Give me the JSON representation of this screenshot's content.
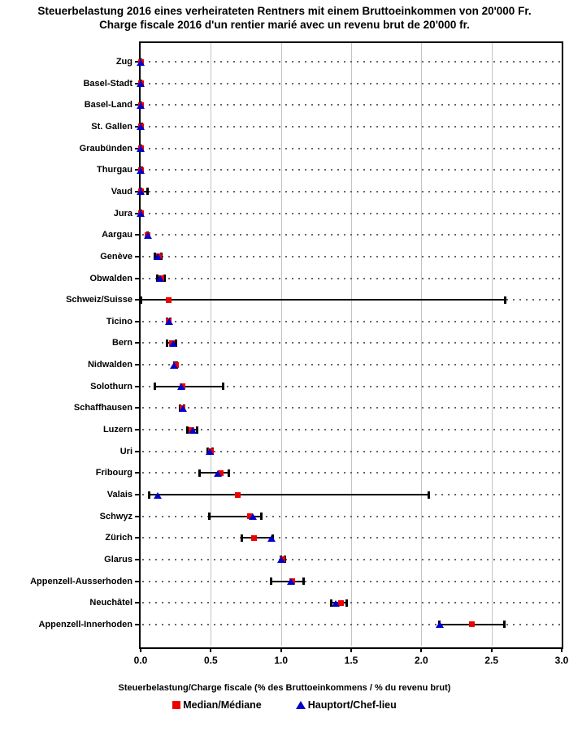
{
  "page": {
    "title_line1": "Steuerbelastung 2016 eines verheirateten Rentners mit einem Bruttoeinkommen von 20'000 Fr.",
    "title_line2": "Charge fiscale 2016 d'un rentier marié avec un revenu brut de 20'000 fr."
  },
  "colors": {
    "median": "#ee0000",
    "capital": "#0000cc",
    "bar": "#000000",
    "grid": "#c4c4c4",
    "dots": "#666666"
  },
  "chart_data": {
    "type": "scatter",
    "orientation": "horizontal",
    "title": "Steuerbelastung 2016 eines verheirateten Rentners mit einem Bruttoeinkommen von 20'000 Fr. / Charge fiscale 2016 d'un rentier marié avec un revenu brut de 20'000 fr.",
    "xlabel": "Steuerbelastung/Charge fiscale (% des Bruttoeinkommens / % du revenu brut)",
    "xlim": [
      0.0,
      3.0
    ],
    "xticks": [
      "0.0",
      "0.5",
      "1.0",
      "1.5",
      "2.0",
      "2.5",
      "3.0"
    ],
    "grid": {
      "vertical": "solid",
      "horizontal": "dotted"
    },
    "legend": [
      {
        "label": "Median/Médiane",
        "marker": "square",
        "color": "#ee0000"
      },
      {
        "label": "Hauptort/Chef-lieu",
        "marker": "triangle",
        "color": "#0000cc"
      }
    ],
    "bars_meaning": "min-max range",
    "rows": [
      {
        "canton": "Zug",
        "median": 0.0,
        "hauptort": 0.0,
        "min": 0.0,
        "max": 0.0
      },
      {
        "canton": "Basel-Stadt",
        "median": 0.0,
        "hauptort": 0.0,
        "min": 0.0,
        "max": 0.0
      },
      {
        "canton": "Basel-Land",
        "median": 0.0,
        "hauptort": 0.0,
        "min": 0.0,
        "max": 0.0
      },
      {
        "canton": "St. Gallen",
        "median": 0.0,
        "hauptort": 0.0,
        "min": 0.0,
        "max": 0.01
      },
      {
        "canton": "Graubünden",
        "median": 0.0,
        "hauptort": 0.0,
        "min": 0.0,
        "max": 0.0
      },
      {
        "canton": "Thurgau",
        "median": 0.0,
        "hauptort": 0.0,
        "min": 0.0,
        "max": 0.01
      },
      {
        "canton": "Vaud",
        "median": 0.0,
        "hauptort": 0.0,
        "min": 0.0,
        "max": 0.05
      },
      {
        "canton": "Jura",
        "median": 0.0,
        "hauptort": 0.0,
        "min": 0.0,
        "max": 0.0
      },
      {
        "canton": "Aargau",
        "median": 0.05,
        "hauptort": 0.05,
        "min": 0.05,
        "max": 0.05
      },
      {
        "canton": "Genève",
        "median": 0.13,
        "hauptort": 0.12,
        "min": 0.1,
        "max": 0.15
      },
      {
        "canton": "Obwalden",
        "median": 0.15,
        "hauptort": 0.14,
        "min": 0.12,
        "max": 0.17
      },
      {
        "canton": "Schweiz/Suisse",
        "median": 0.2,
        "hauptort": null,
        "min": 0.0,
        "max": 2.6
      },
      {
        "canton": "Ticino",
        "median": 0.2,
        "hauptort": 0.2,
        "min": 0.19,
        "max": 0.21
      },
      {
        "canton": "Bern",
        "median": 0.22,
        "hauptort": 0.23,
        "min": 0.19,
        "max": 0.25
      },
      {
        "canton": "Nidwalden",
        "median": 0.25,
        "hauptort": 0.24,
        "min": 0.24,
        "max": 0.26
      },
      {
        "canton": "Solothurn",
        "median": 0.3,
        "hauptort": 0.29,
        "min": 0.1,
        "max": 0.59
      },
      {
        "canton": "Schaffhausen",
        "median": 0.3,
        "hauptort": 0.3,
        "min": 0.28,
        "max": 0.31
      },
      {
        "canton": "Luzern",
        "median": 0.36,
        "hauptort": 0.37,
        "min": 0.33,
        "max": 0.4
      },
      {
        "canton": "Uri",
        "median": 0.5,
        "hauptort": 0.49,
        "min": 0.48,
        "max": 0.51
      },
      {
        "canton": "Fribourg",
        "median": 0.57,
        "hauptort": 0.55,
        "min": 0.42,
        "max": 0.63
      },
      {
        "canton": "Valais",
        "median": 0.69,
        "hauptort": 0.12,
        "min": 0.06,
        "max": 2.05
      },
      {
        "canton": "Schwyz",
        "median": 0.78,
        "hauptort": 0.8,
        "min": 0.49,
        "max": 0.86
      },
      {
        "canton": "Zürich",
        "median": 0.81,
        "hauptort": 0.93,
        "min": 0.72,
        "max": 0.94
      },
      {
        "canton": "Glarus",
        "median": 1.01,
        "hauptort": 1.0,
        "min": 1.0,
        "max": 1.03
      },
      {
        "canton": "Appenzell-Ausserhoden",
        "median": 1.08,
        "hauptort": 1.07,
        "min": 0.93,
        "max": 1.16
      },
      {
        "canton": "Neuchâtel",
        "median": 1.43,
        "hauptort": 1.39,
        "min": 1.36,
        "max": 1.47
      },
      {
        "canton": "Appenzell-Innerhoden",
        "median": 2.36,
        "hauptort": 2.13,
        "min": 2.13,
        "max": 2.59
      }
    ]
  }
}
